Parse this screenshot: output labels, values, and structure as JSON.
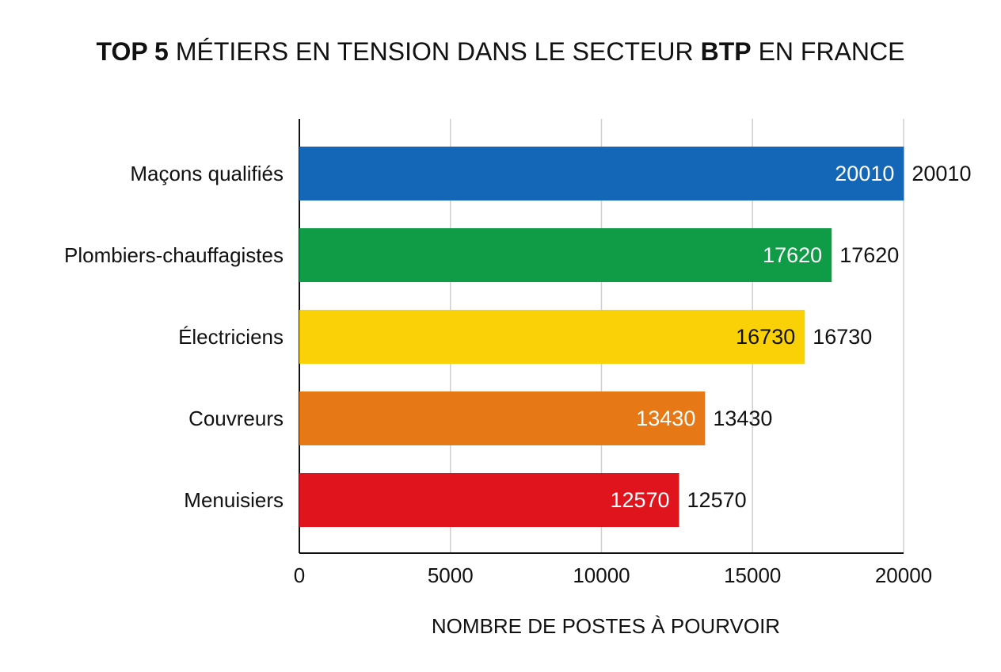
{
  "chart_data": {
    "type": "hbar",
    "title": [
      {
        "text": "TOP 5",
        "bold": true
      },
      {
        "text": "MÉTIERS EN TENSION DANS LE SECTEUR",
        "bold": false
      },
      {
        "text": "BTP",
        "bold": true
      },
      {
        "text": "EN FRANCE",
        "bold": false
      }
    ],
    "categories": [
      "Maçons qualifiés",
      "Plombiers-chauffagistes",
      "Électriciens",
      "Couvreurs",
      "Menuisiers"
    ],
    "values": [
      20010,
      17620,
      16730,
      13430,
      12570
    ],
    "colors": [
      "#1467b6",
      "#109c46",
      "#fad106",
      "#e77816",
      "#e0141c"
    ],
    "inner_label_colors": [
      "#ffffff",
      "#ffffff",
      "#111111",
      "#ffffff",
      "#ffffff"
    ],
    "xlim": [
      0,
      20000
    ],
    "xticks": [
      0,
      5000,
      10000,
      15000,
      20000
    ],
    "xlabel": "NOMBRE DE POSTES À POURVOIR",
    "grid": true
  }
}
